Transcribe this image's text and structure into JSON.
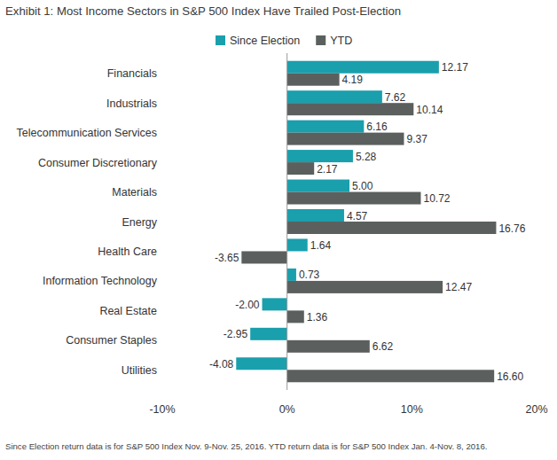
{
  "chart_data": {
    "type": "bar",
    "orientation": "horizontal",
    "title": "Exhibit 1: Most Income Sectors in S&P 500 Index Have Trailed Post-Election",
    "footnote": "Since Election return data is for S&P 500 Index Nov. 9-Nov. 25, 2016. YTD return data is for S&P 500 Index Jan. 4-Nov. 8, 2016.",
    "categories": [
      "Financials",
      "Industrials",
      "Telecommunication Services",
      "Consumer Discretionary",
      "Materials",
      "Energy",
      "Health Care",
      "Information Technology",
      "Real Estate",
      "Consumer Staples",
      "Utilities"
    ],
    "series": [
      {
        "name": "Since Election",
        "color": "#1a9fad",
        "values": [
          12.17,
          7.62,
          6.16,
          5.28,
          5.0,
          4.57,
          1.64,
          0.73,
          -2.0,
          -2.95,
          -4.08
        ],
        "value_labels": [
          "12.17",
          "7.62",
          "6.16",
          "5.28",
          "5.00",
          "4.57",
          "1.64",
          "0.73",
          "-2.00",
          "-2.95",
          "-4.08"
        ]
      },
      {
        "name": "YTD",
        "color": "#5b605f",
        "values": [
          4.19,
          10.14,
          9.37,
          2.17,
          10.72,
          16.76,
          -3.65,
          12.47,
          1.36,
          6.62,
          16.6
        ],
        "value_labels": [
          "4.19",
          "10.14",
          "9.37",
          "2.17",
          "10.72",
          "16.76",
          "-3.65",
          "12.47",
          "1.36",
          "6.62",
          "16.60"
        ]
      }
    ],
    "xlim": [
      -10,
      20
    ],
    "xticks": [
      {
        "value": -10,
        "label": "-10%"
      },
      {
        "value": 0,
        "label": "0%"
      },
      {
        "value": 10,
        "label": "10%"
      },
      {
        "value": 20,
        "label": "20%"
      }
    ],
    "data_labels": true,
    "legend": "top",
    "grid": false
  }
}
